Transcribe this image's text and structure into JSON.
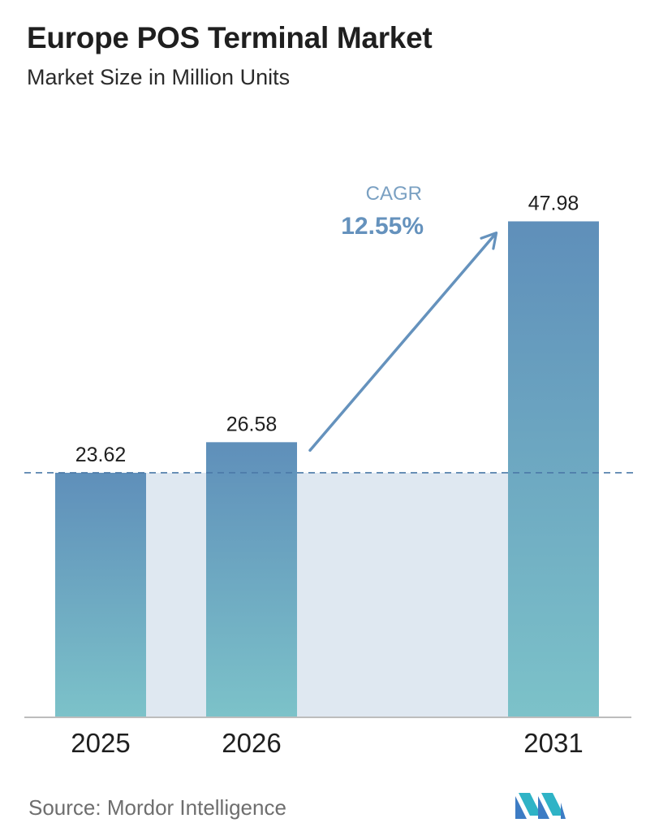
{
  "header": {
    "title": "Europe POS Terminal Market",
    "subtitle": "Market Size in Million Units"
  },
  "chart_data": {
    "type": "bar",
    "categories": [
      "2025",
      "2026",
      "2031"
    ],
    "values": [
      23.62,
      26.58,
      47.98
    ],
    "value_labels": [
      "23.62",
      "26.58",
      "47.98"
    ],
    "ylim": [
      0,
      54
    ],
    "grid": false,
    "annotation": {
      "label": "CAGR",
      "value": "12.55%"
    }
  },
  "footer": {
    "source": "Source:  Mordor Intelligence",
    "logo_icon": "mordor-intelligence-logo-icon"
  },
  "colors": {
    "bar_top": "#5f8fba",
    "bar_bottom": "#7cc2c9",
    "band_fill": "#dfe8f1",
    "arrow": "#6592bd",
    "dashed_line": "#4b79a8",
    "axis": "#bdbdbd",
    "cagr_label": "#7aa0c2",
    "cagr_value": "#6592bd"
  }
}
